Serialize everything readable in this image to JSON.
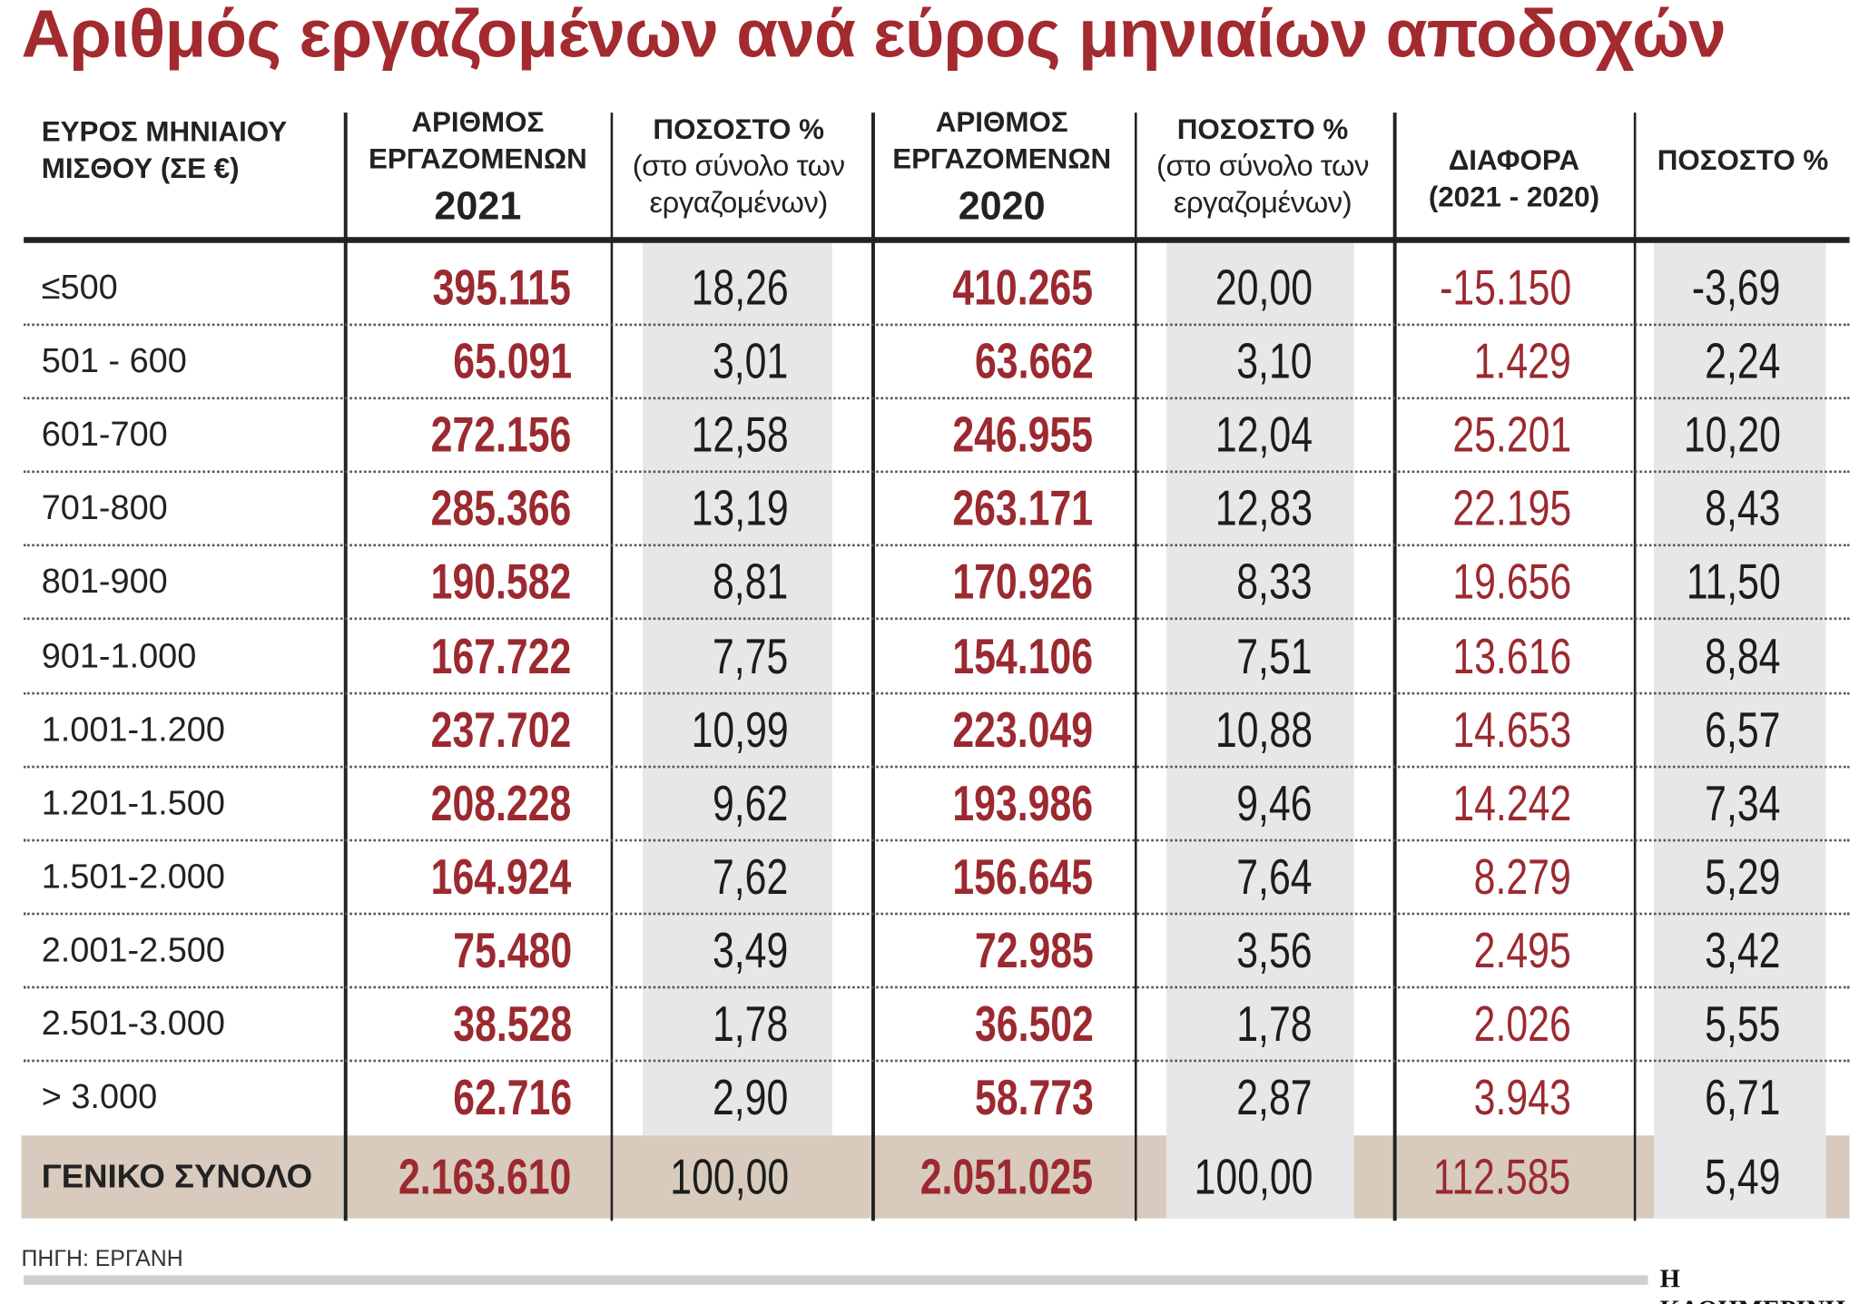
{
  "title": "Αριθμός εργαζομένων ανά εύρος μηνιαίων αποδοχών",
  "table": {
    "header": [
      {
        "title": "ΕΥΡΟΣ ΜΗΝΙΑΙΟΥ ΜΙΣΘΟΥ (ΣΕ €)"
      },
      {
        "title": "ΑΡΙΘΜΟΣ ΕΡΓΑΖΟΜΕΝΩΝ",
        "year": "2021"
      },
      {
        "title": "ΠΟΣΟΣΤΟ %",
        "note": "(στο σύνολο των εργαζομένων)"
      },
      {
        "title": "ΑΡΙΘΜΟΣ ΕΡΓΑΖΟΜΕΝΩΝ",
        "year": "2020"
      },
      {
        "title": "ΠΟΣΟΣΤΟ %",
        "note": "(στο σύνολο των εργαζομένων)"
      },
      {
        "title": "ΔΙΑΦΟΡΑ",
        "note": "(2021 - 2020)"
      },
      {
        "title": "ΠΟΣΟΣΤΟ %"
      }
    ],
    "rows": [
      [
        "≤500",
        "395.115",
        "18,26",
        "410.265",
        "20,00",
        "-15.150",
        "-3,69"
      ],
      [
        "501 - 600",
        "65.091",
        "3,01",
        "63.662",
        "3,10",
        "1.429",
        "2,24"
      ],
      [
        "601-700",
        "272.156",
        "12,58",
        "246.955",
        "12,04",
        "25.201",
        "10,20"
      ],
      [
        "701-800",
        "285.366",
        "13,19",
        "263.171",
        "12,83",
        "22.195",
        "8,43"
      ],
      [
        "801-900",
        "190.582",
        "8,81",
        "170.926",
        "8,33",
        "19.656",
        "11,50"
      ],
      [
        "901-1.000",
        "167.722",
        "7,75",
        "154.106",
        "7,51",
        "13.616",
        "8,84"
      ],
      [
        "1.001-1.200",
        "237.702",
        "10,99",
        "223.049",
        "10,88",
        "14.653",
        "6,57"
      ],
      [
        "1.201-1.500",
        "208.228",
        "9,62",
        "193.986",
        "9,46",
        "14.242",
        "7,34"
      ],
      [
        "1.501-2.000",
        "164.924",
        "7,62",
        "156.645",
        "7,64",
        "8.279",
        "5,29"
      ],
      [
        "2.001-2.500",
        "75.480",
        "3,49",
        "72.985",
        "3,56",
        "2.495",
        "3,42"
      ],
      [
        "2.501-3.000",
        "38.528",
        "1,78",
        "36.502",
        "1,78",
        "2.026",
        "5,55"
      ],
      [
        "> 3.000",
        "62.716",
        "2,90",
        "58.773",
        "2,87",
        "3.943",
        "6,71"
      ]
    ],
    "total": [
      "ΓΕΝΙΚΟ ΣΥΝΟΛΟ",
      "2.163.610",
      "100,00",
      "2.051.025",
      "100,00",
      "112.585",
      "5,49"
    ]
  },
  "source": "ΠΗΓΗ: ΕΡΓΑΝΗ",
  "logo": "Η ΚΑΘΗΜΕΡΙΝΗ"
}
